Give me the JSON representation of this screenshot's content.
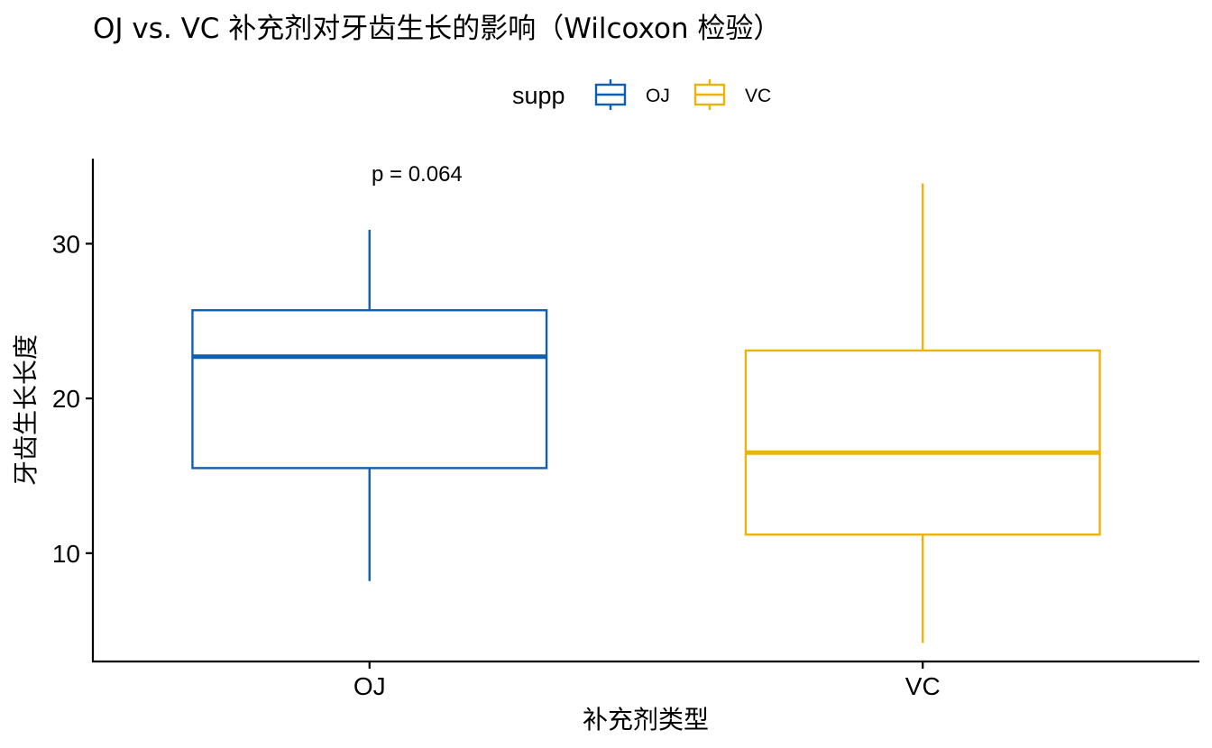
{
  "chart_data": {
    "type": "boxplot",
    "title": "OJ vs. VC 补充剂对牙齿生长的影响（Wilcoxon 检验）",
    "xlabel": "补充剂类型",
    "ylabel": "牙齿生长长度",
    "categories": [
      "OJ",
      "VC"
    ],
    "ylim": [
      3,
      35.5
    ],
    "yticks": [
      10,
      20,
      30
    ],
    "grid": false,
    "legend": {
      "title": "supp",
      "position": "top",
      "entries": [
        {
          "label": "OJ",
          "color": "#0f5fb0"
        },
        {
          "label": "VC",
          "color": "#e8b40e"
        }
      ]
    },
    "series": [
      {
        "name": "OJ",
        "category": "OJ",
        "color": "#0f5fb0",
        "min": 8.2,
        "q1": 15.5,
        "median": 22.7,
        "q3": 25.7,
        "max": 30.9
      },
      {
        "name": "VC",
        "category": "VC",
        "color": "#e8b40e",
        "min": 4.2,
        "q1": 11.2,
        "median": 16.5,
        "q3": 23.1,
        "max": 33.9
      }
    ],
    "annotation": {
      "text": "p = 0.064",
      "anchor": "top-left"
    }
  }
}
